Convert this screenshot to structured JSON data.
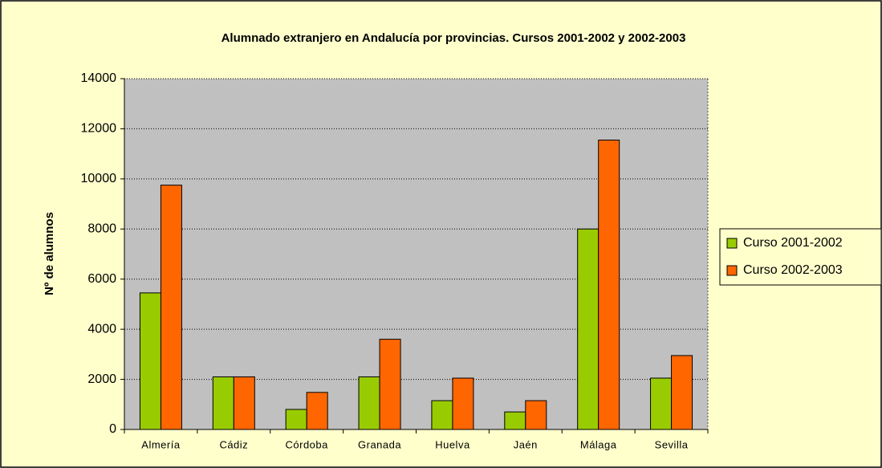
{
  "chart_data": {
    "type": "bar",
    "title": "Alumnado extranjero en Andalucía por provincias. Cursos 2001-2002 y 2002-2003",
    "y_label": "Nº de alumnos",
    "categories": [
      "Almería",
      "Cádiz",
      "Córdoba",
      "Granada",
      "Huelva",
      "Jaén",
      "Málaga",
      "Sevilla"
    ],
    "series": [
      {
        "name": "Curso 2001-2002",
        "color": "#99cc00",
        "values": [
          5450,
          2100,
          800,
          2100,
          1150,
          700,
          8000,
          2050
        ]
      },
      {
        "name": "Curso 2002-2003",
        "color": "#ff6600",
        "values": [
          9750,
          2100,
          1480,
          3600,
          2050,
          1150,
          11550,
          2950
        ]
      }
    ],
    "ylim": [
      0,
      14000
    ],
    "yticks": [
      0,
      2000,
      4000,
      6000,
      8000,
      10000,
      12000,
      14000
    ],
    "grid": true,
    "legend": "right"
  }
}
